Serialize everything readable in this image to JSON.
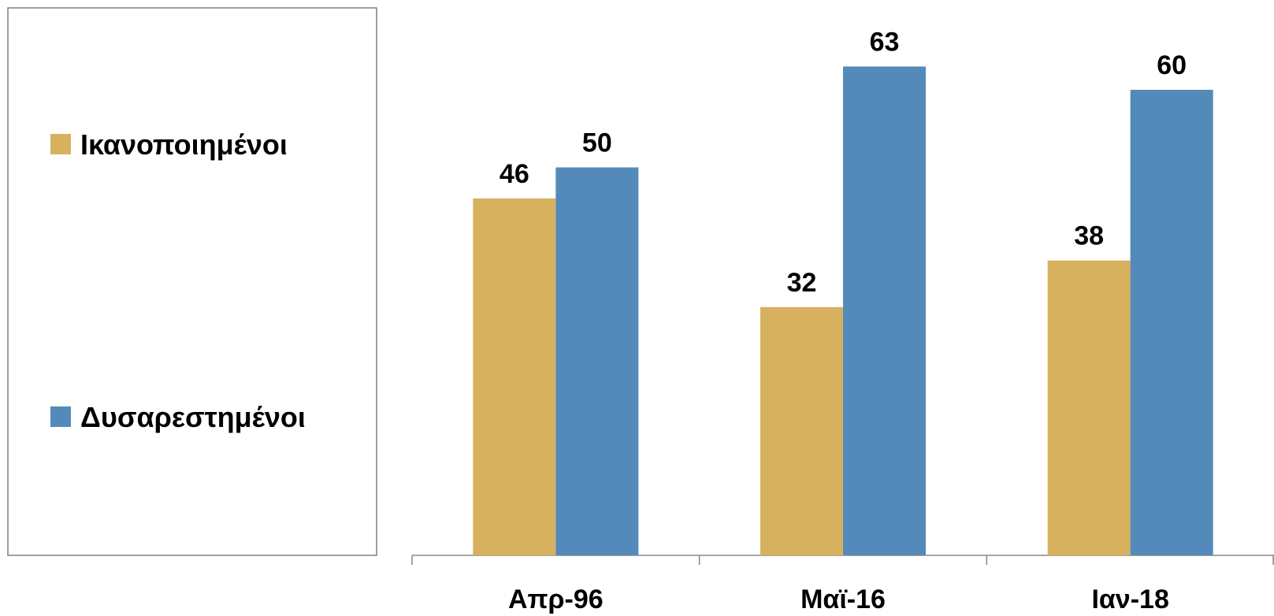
{
  "chart_data": {
    "type": "bar",
    "categories": [
      "Απρ-96",
      "Μαϊ-16",
      "Ιαν-18"
    ],
    "series": [
      {
        "name": "Ικανοποιημένοι",
        "values": [
          46,
          32,
          38
        ],
        "color": "#D7B15E"
      },
      {
        "name": "Δυσαρεστημένοι",
        "values": [
          50,
          63,
          60
        ],
        "color": "#548AB9"
      }
    ],
    "title": "",
    "xlabel": "",
    "ylabel": "",
    "ylim": [
      0,
      70
    ],
    "grid": false,
    "legend": "left"
  }
}
